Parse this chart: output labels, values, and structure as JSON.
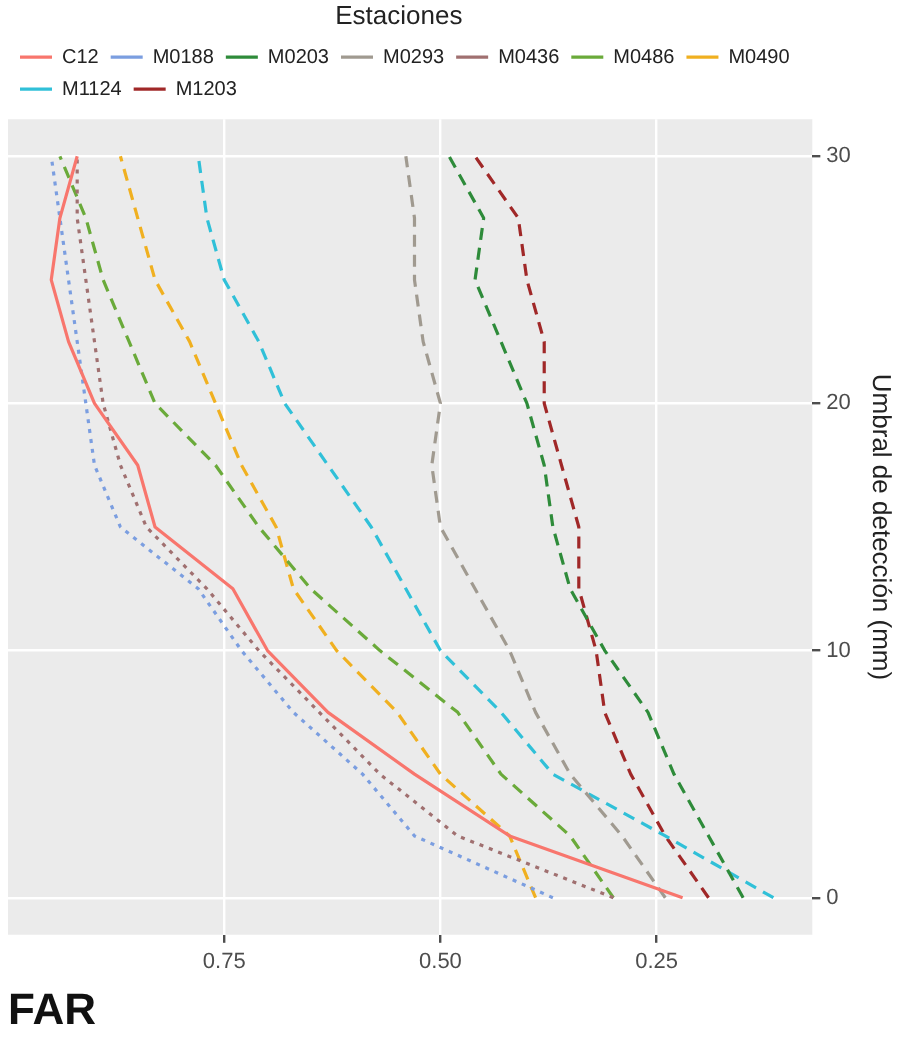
{
  "chart_data": {
    "type": "line",
    "title": "FAR",
    "y2label": "Umbral de detección (mm)",
    "legend_title": "Estaciones",
    "legend": "top",
    "grid": true,
    "marker": "none",
    "xlim": [
      1.0,
      0.07
    ],
    "xticks": [
      {
        "value": 0.75,
        "label": "0.75"
      },
      {
        "value": 0.5,
        "label": "0.50"
      },
      {
        "value": 0.25,
        "label": "0.25"
      }
    ],
    "y2lim": [
      -1.5,
      31.5
    ],
    "y2ticks": [
      0,
      10,
      20,
      30
    ],
    "series": [
      {
        "name": "C12",
        "color": "#f8766d",
        "line_style": "solid",
        "axis": "y2",
        "values": [
          0,
          2.5,
          5,
          7.5,
          10,
          12.5,
          15,
          17.5,
          20,
          22.5,
          25,
          27.5,
          30
        ],
        "x": [
          0.22,
          0.42,
          0.53,
          0.63,
          0.7,
          0.74,
          0.83,
          0.85,
          0.9,
          0.93,
          0.95,
          0.94,
          0.92
        ]
      },
      {
        "name": "M0188",
        "color": "#7b9ee0",
        "line_style": "dotted",
        "axis": "y2",
        "values": [
          0,
          2.5,
          5,
          7.5,
          10,
          12.5,
          15,
          17.5,
          20,
          22.5,
          25,
          27.5,
          30
        ],
        "x": [
          0.37,
          0.53,
          0.59,
          0.67,
          0.73,
          0.78,
          0.87,
          0.9,
          0.91,
          0.92,
          0.93,
          0.94,
          0.95
        ]
      },
      {
        "name": "M0203",
        "color": "#2e8b3a",
        "line_style": "dashed",
        "axis": "y2",
        "values": [
          0,
          2.5,
          5,
          7.5,
          10,
          12.5,
          15,
          17.5,
          20,
          22.5,
          25,
          27.5,
          30
        ],
        "x": [
          0.15,
          0.19,
          0.23,
          0.26,
          0.31,
          0.35,
          0.37,
          0.38,
          0.4,
          0.43,
          0.46,
          0.45,
          0.49
        ]
      },
      {
        "name": "M0293",
        "color": "#a09a90",
        "line_style": "dashed",
        "axis": "y2",
        "values": [
          0,
          2.5,
          5,
          7.5,
          10,
          12.5,
          15,
          17.5,
          20,
          22.5,
          25,
          27.5,
          30
        ],
        "x": [
          0.24,
          0.29,
          0.35,
          0.39,
          0.42,
          0.46,
          0.5,
          0.51,
          0.5,
          0.52,
          0.53,
          0.53,
          0.54
        ]
      },
      {
        "name": "M0436",
        "color": "#a07070",
        "line_style": "dotted",
        "axis": "y2",
        "values": [
          0,
          2.5,
          5,
          7.5,
          10,
          12.5,
          15,
          17.5,
          20,
          22.5,
          25,
          27.5,
          30
        ],
        "x": [
          0.3,
          0.48,
          0.57,
          0.64,
          0.71,
          0.77,
          0.84,
          0.87,
          0.89,
          0.9,
          0.91,
          0.92,
          0.92
        ]
      },
      {
        "name": "M0486",
        "color": "#6aaa3a",
        "line_style": "dashed",
        "axis": "y2",
        "values": [
          0,
          2.5,
          5,
          7.5,
          10,
          12.5,
          15,
          17.5,
          20,
          22.5,
          25,
          27.5,
          30
        ],
        "x": [
          0.3,
          0.35,
          0.43,
          0.48,
          0.57,
          0.65,
          0.71,
          0.76,
          0.83,
          0.86,
          0.89,
          0.91,
          0.94
        ]
      },
      {
        "name": "M0490",
        "color": "#f0b020",
        "line_style": "dashed",
        "axis": "y2",
        "values": [
          0,
          2.5,
          5,
          7.5,
          10,
          12.5,
          15,
          17.5,
          20,
          22.5,
          25,
          27.5,
          30
        ],
        "x": [
          0.39,
          0.42,
          0.5,
          0.55,
          0.62,
          0.67,
          0.69,
          0.73,
          0.76,
          0.79,
          0.83,
          0.85,
          0.87
        ]
      },
      {
        "name": "M1124",
        "color": "#30c0d8",
        "line_style": "dashed",
        "axis": "y2",
        "values": [
          0,
          2.5,
          5,
          7.5,
          10,
          12.5,
          15,
          17.5,
          20,
          22.5,
          25,
          27.5,
          30
        ],
        "x": [
          0.115,
          0.24,
          0.37,
          0.43,
          0.5,
          0.54,
          0.58,
          0.63,
          0.68,
          0.71,
          0.75,
          0.77,
          0.78
        ]
      },
      {
        "name": "M1203",
        "color": "#a02828",
        "line_style": "dashed",
        "axis": "y2",
        "values": [
          0,
          2.5,
          5,
          7.5,
          10,
          12.5,
          15,
          17.5,
          20,
          22.5,
          25,
          27.5,
          30
        ],
        "x": [
          0.19,
          0.24,
          0.28,
          0.31,
          0.32,
          0.34,
          0.34,
          0.36,
          0.38,
          0.38,
          0.4,
          0.41,
          0.46
        ]
      }
    ]
  }
}
